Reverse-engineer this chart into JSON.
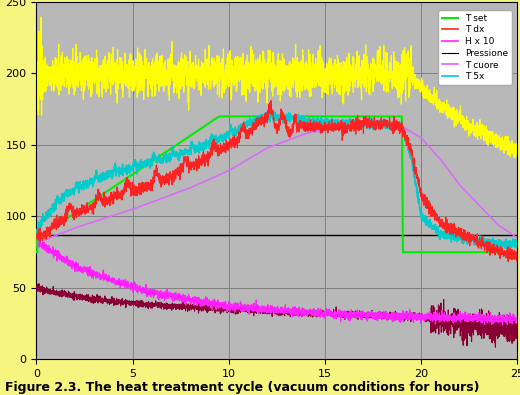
{
  "title": "Figure 2.3. The heat treatment cycle (vacuum conditions for hours)",
  "xlim": [
    0,
    25
  ],
  "ylim": [
    0,
    250
  ],
  "xticks": [
    0,
    5,
    10,
    15,
    20,
    25
  ],
  "yticks": [
    0,
    50,
    100,
    150,
    200,
    250
  ],
  "background_color": "#f5f580",
  "plot_bg_color": "#b8b8b8",
  "grid_color": "#808080",
  "legend_labels": [
    "T set",
    "T dx",
    "H x 10",
    "Pressione",
    "T cuore",
    "T 5x"
  ],
  "legend_colors": [
    "#00dd00",
    "#ff2222",
    "#ff22ff",
    "#555555",
    "#dd66ff",
    "#00dddd"
  ]
}
